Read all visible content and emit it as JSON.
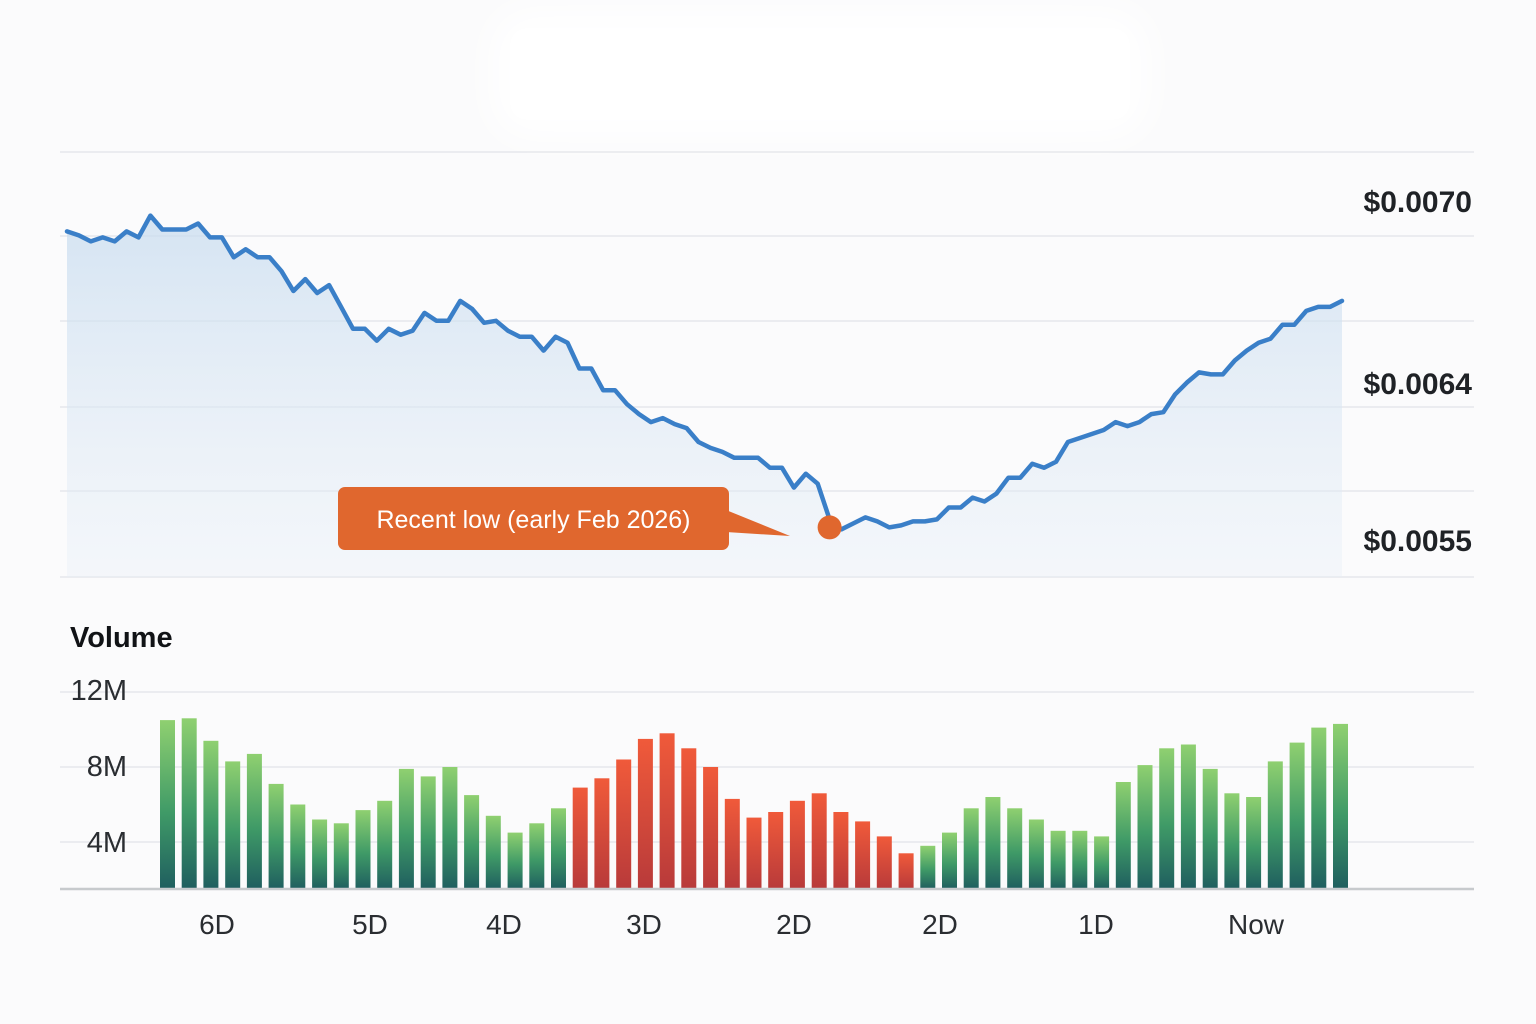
{
  "chart_data": [
    {
      "type": "line",
      "title": "",
      "xlabel": "",
      "ylabel": "",
      "fill_area": true,
      "grid": true,
      "y_ticks": [
        "$0.0070",
        "$0.0064",
        "$0.0055"
      ],
      "ylim": [
        0.00528,
        0.00742
      ],
      "line_color": "#3a7fc8",
      "annotation": {
        "text": "Recent low (early Feb 2026)",
        "point_index": 64,
        "color": "#e0672e"
      },
      "values": [
        0.00702,
        0.007,
        0.00697,
        0.00699,
        0.00697,
        0.00702,
        0.00699,
        0.0071,
        0.00703,
        0.00703,
        0.00703,
        0.00706,
        0.00699,
        0.00699,
        0.00689,
        0.00693,
        0.00689,
        0.00689,
        0.00682,
        0.00672,
        0.00678,
        0.00671,
        0.00675,
        0.00664,
        0.00653,
        0.00653,
        0.00647,
        0.00653,
        0.0065,
        0.00652,
        0.00661,
        0.00657,
        0.00657,
        0.00667,
        0.00663,
        0.00656,
        0.00657,
        0.00652,
        0.00649,
        0.00649,
        0.00642,
        0.00649,
        0.00646,
        0.00633,
        0.00633,
        0.00622,
        0.00622,
        0.00615,
        0.0061,
        0.00606,
        0.00608,
        0.00605,
        0.00603,
        0.00596,
        0.00593,
        0.00591,
        0.00588,
        0.00588,
        0.00588,
        0.00583,
        0.00583,
        0.00573,
        0.0058,
        0.00575,
        0.00557,
        0.00552,
        0.00555,
        0.00558,
        0.00556,
        0.00553,
        0.00554,
        0.00556,
        0.00556,
        0.00557,
        0.00563,
        0.00563,
        0.00568,
        0.00566,
        0.0057,
        0.00578,
        0.00578,
        0.00585,
        0.00583,
        0.00586,
        0.00596,
        0.00598,
        0.006,
        0.00602,
        0.00606,
        0.00604,
        0.00606,
        0.0061,
        0.00611,
        0.0062,
        0.00626,
        0.00631,
        0.0063,
        0.0063,
        0.00637,
        0.00642,
        0.00646,
        0.00648,
        0.00655,
        0.00655,
        0.00662,
        0.00664,
        0.00664,
        0.00667
      ]
    },
    {
      "type": "bar",
      "title": "Volume",
      "xlabel": "",
      "ylabel": "",
      "y_ticks": [
        "12M",
        "8M",
        "4M"
      ],
      "ylim": [
        1.5,
        12
      ],
      "x_ticks": [
        "6D",
        "5D",
        "4D",
        "3D",
        "2D",
        "2D",
        "1D",
        "Now"
      ],
      "colors": {
        "up_top": "#8fd070",
        "up_bottom": "#1f5e5f",
        "down_top": "#f05a3a",
        "down_bottom": "#b83a3a"
      },
      "values": [
        10.5,
        10.6,
        9.4,
        8.3,
        8.7,
        7.1,
        6.0,
        5.2,
        5.0,
        5.7,
        6.2,
        7.9,
        7.5,
        8.0,
        6.5,
        5.4,
        4.5,
        5.0,
        5.8,
        6.9,
        7.4,
        8.4,
        9.5,
        9.8,
        9.0,
        8.0,
        6.3,
        5.3,
        5.6,
        6.2,
        6.6,
        5.6,
        5.1,
        4.3,
        3.4,
        3.8,
        4.5,
        5.8,
        6.4,
        5.8,
        5.2,
        4.6,
        4.6,
        4.3,
        7.2,
        8.1,
        9.0,
        9.2,
        7.9,
        6.6,
        6.4,
        8.3,
        9.3,
        10.1,
        10.3
      ],
      "direction": [
        "up",
        "up",
        "up",
        "up",
        "up",
        "up",
        "up",
        "up",
        "up",
        "up",
        "up",
        "up",
        "up",
        "up",
        "up",
        "up",
        "up",
        "up",
        "up",
        "down",
        "down",
        "down",
        "down",
        "down",
        "down",
        "down",
        "down",
        "down",
        "down",
        "down",
        "down",
        "down",
        "down",
        "down",
        "down",
        "up",
        "up",
        "up",
        "up",
        "up",
        "up",
        "up",
        "up",
        "up",
        "up",
        "up",
        "up",
        "up",
        "up",
        "up",
        "up",
        "up",
        "up",
        "up",
        "up"
      ]
    }
  ]
}
